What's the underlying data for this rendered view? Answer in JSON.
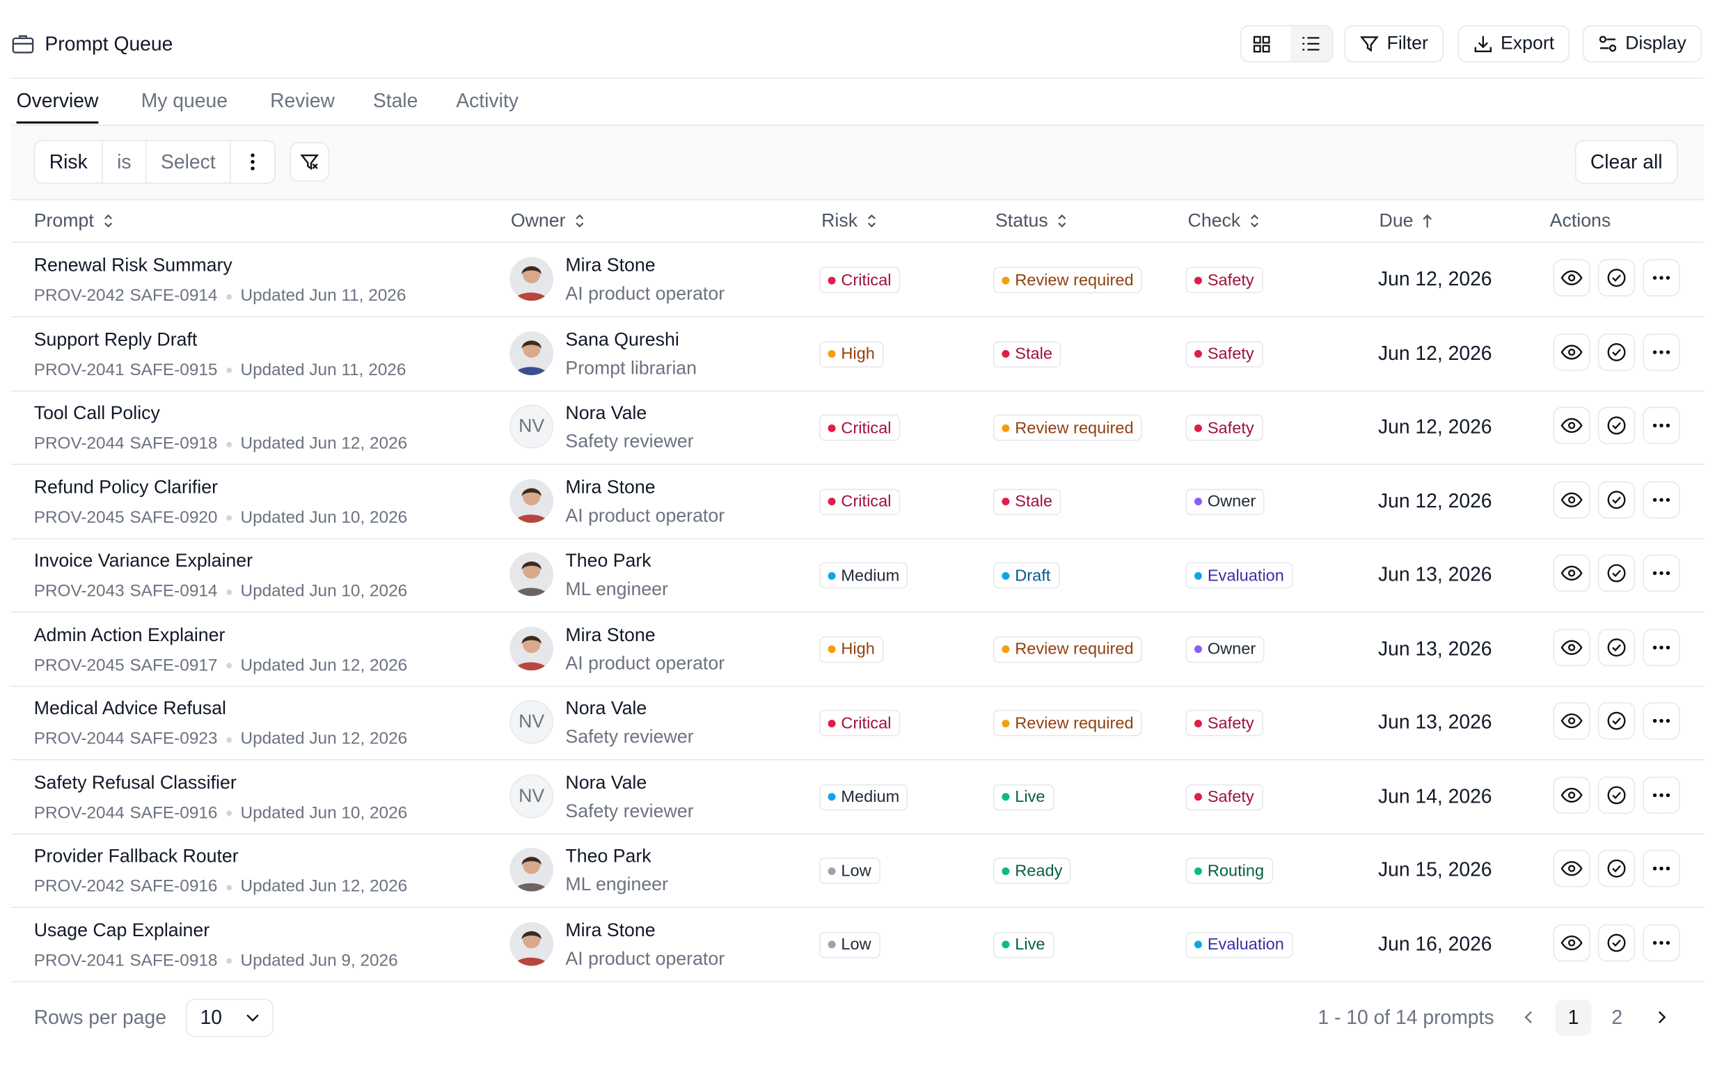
{
  "header": {
    "title": "Prompt Queue",
    "buttons": [
      "Filter",
      "Export",
      "Display"
    ]
  },
  "tabs": {
    "items": [
      "Overview",
      "My queue",
      "Review",
      "Stale",
      "Activity"
    ],
    "active": 0
  },
  "filter": {
    "field": "Risk",
    "operator": "is",
    "value": "Select",
    "clear": "Clear all"
  },
  "table": {
    "columns": [
      {
        "label": "Prompt",
        "sortable": true
      },
      {
        "label": "Owner",
        "sortable": true
      },
      {
        "label": "Risk",
        "sortable": true
      },
      {
        "label": "Status",
        "sortable": true
      },
      {
        "label": "Check",
        "sortable": true
      },
      {
        "label": "Due",
        "sort": "asc"
      },
      {
        "label": "Actions"
      }
    ],
    "rows": [
      {
        "title": "Renewal Risk Summary",
        "id": "PROV-2042",
        "safe": "SAFE-0914",
        "updated": "Updated Jun 11, 2026",
        "owner": "Mira Stone",
        "role": "AI product operator",
        "avatar": "#b8453e",
        "risk": "Critical",
        "status": "Review required",
        "check": "Safety",
        "due": "Jun 12, 2026"
      },
      {
        "title": "Support Reply Draft",
        "id": "PROV-2041",
        "safe": "SAFE-0915",
        "updated": "Updated Jun 11, 2026",
        "owner": "Sana Qureshi",
        "role": "Prompt librarian",
        "avatar": "#3a4f8f",
        "risk": "High",
        "status": "Stale",
        "check": "Safety",
        "due": "Jun 12, 2026"
      },
      {
        "title": "Tool Call Policy",
        "id": "PROV-2044",
        "safe": "SAFE-0918",
        "updated": "Updated Jun 12, 2026",
        "owner": "Nora Vale",
        "role": "Safety reviewer",
        "initials": "NV",
        "risk": "Critical",
        "status": "Review required",
        "check": "Safety",
        "due": "Jun 12, 2026"
      },
      {
        "title": "Refund Policy Clarifier",
        "id": "PROV-2045",
        "safe": "SAFE-0920",
        "updated": "Updated Jun 10, 2026",
        "owner": "Mira Stone",
        "role": "AI product operator",
        "avatar": "#b8453e",
        "risk": "Critical",
        "status": "Stale",
        "check": "Owner",
        "due": "Jun 12, 2026"
      },
      {
        "title": "Invoice Variance Explainer",
        "id": "PROV-2043",
        "safe": "SAFE-0914",
        "updated": "Updated Jun 10, 2026",
        "owner": "Theo Park",
        "role": "ML engineer",
        "avatar": "#6b6460",
        "risk": "Medium",
        "status": "Draft",
        "check": "Evaluation",
        "due": "Jun 13, 2026"
      },
      {
        "title": "Admin Action Explainer",
        "id": "PROV-2045",
        "safe": "SAFE-0917",
        "updated": "Updated Jun 12, 2026",
        "owner": "Mira Stone",
        "role": "AI product operator",
        "avatar": "#b8453e",
        "risk": "High",
        "status": "Review required",
        "check": "Owner",
        "due": "Jun 13, 2026"
      },
      {
        "title": "Medical Advice Refusal",
        "id": "PROV-2044",
        "safe": "SAFE-0923",
        "updated": "Updated Jun 12, 2026",
        "owner": "Nora Vale",
        "role": "Safety reviewer",
        "initials": "NV",
        "risk": "Critical",
        "status": "Review required",
        "check": "Safety",
        "due": "Jun 13, 2026"
      },
      {
        "title": "Safety Refusal Classifier",
        "id": "PROV-2044",
        "safe": "SAFE-0916",
        "updated": "Updated Jun 10, 2026",
        "owner": "Nora Vale",
        "role": "Safety reviewer",
        "initials": "NV",
        "risk": "Medium",
        "status": "Live",
        "check": "Safety",
        "due": "Jun 14, 2026"
      },
      {
        "title": "Provider Fallback Router",
        "id": "PROV-2042",
        "safe": "SAFE-0916",
        "updated": "Updated Jun 12, 2026",
        "owner": "Theo Park",
        "role": "ML engineer",
        "avatar": "#6b6460",
        "risk": "Low",
        "status": "Ready",
        "check": "Routing",
        "due": "Jun 15, 2026"
      },
      {
        "title": "Usage Cap Explainer",
        "id": "PROV-2041",
        "safe": "SAFE-0918",
        "updated": "Updated Jun 9, 2026",
        "owner": "Mira Stone",
        "role": "AI product operator",
        "avatar": "#b8453e",
        "risk": "Low",
        "status": "Live",
        "check": "Evaluation",
        "due": "Jun 16, 2026"
      }
    ]
  },
  "badge_colors": {
    "Critical": {
      "dot": "#e11d48",
      "text": "#9f1239"
    },
    "High": {
      "dot": "#f59e0b",
      "text": "#92400e"
    },
    "Medium": {
      "dot": "#0ea5e9",
      "text": "#1f2937"
    },
    "Low": {
      "dot": "#9ca3af",
      "text": "#1f2937"
    },
    "Review required": {
      "dot": "#f59e0b",
      "text": "#92400e"
    },
    "Stale": {
      "dot": "#e11d48",
      "text": "#9f1239"
    },
    "Draft": {
      "dot": "#0ea5e9",
      "text": "#075985"
    },
    "Live": {
      "dot": "#10b981",
      "text": "#065f46"
    },
    "Ready": {
      "dot": "#10b981",
      "text": "#065f46"
    },
    "Safety": {
      "dot": "#e11d48",
      "text": "#9f1239"
    },
    "Owner": {
      "dot": "#8b5cf6",
      "text": "#1f2937"
    },
    "Evaluation": {
      "dot": "#0ea5e9",
      "text": "#3730a3"
    },
    "Routing": {
      "dot": "#10b981",
      "text": "#065f46"
    }
  },
  "footer": {
    "rows_per_page_label": "Rows per page",
    "rows_per_page": "10",
    "range": "1 - 10 of 14 prompts",
    "pages": [
      "1",
      "2"
    ],
    "current_page": 0
  }
}
